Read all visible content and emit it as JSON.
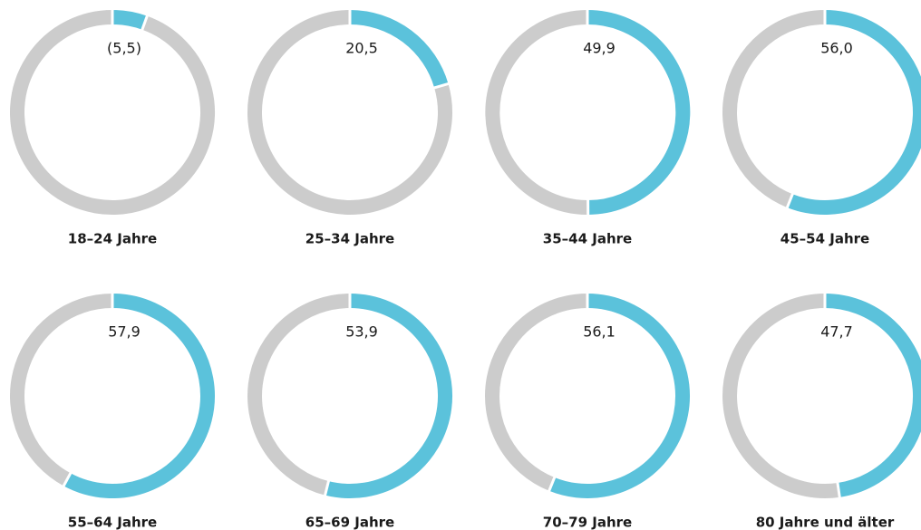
{
  "chart_data": {
    "type": "pie",
    "colors": {
      "share": "#5bc2db",
      "rest": "#cccccc",
      "separator": "#ffffff"
    },
    "items": [
      {
        "category": "18–24 Jahre",
        "value": 5.5,
        "label": "(5,5)"
      },
      {
        "category": "25–34 Jahre",
        "value": 20.5,
        "label": "20,5"
      },
      {
        "category": "35–44 Jahre",
        "value": 49.9,
        "label": "49,9"
      },
      {
        "category": "45–54 Jahre",
        "value": 56.0,
        "label": "56,0"
      },
      {
        "category": "55–64 Jahre",
        "value": 57.9,
        "label": "57,9"
      },
      {
        "category": "65–69 Jahre",
        "value": 53.9,
        "label": "53,9"
      },
      {
        "category": "70–79 Jahre",
        "value": 56.1,
        "label": "56,1"
      },
      {
        "category": "80 Jahre und älter",
        "value": 47.7,
        "label": "47,7"
      }
    ]
  }
}
